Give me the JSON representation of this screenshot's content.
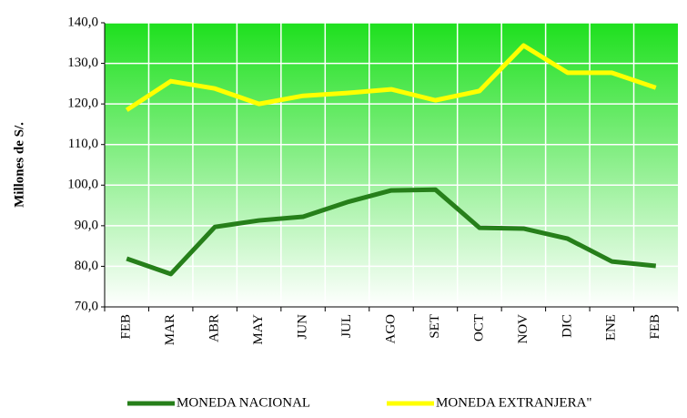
{
  "chart_data": {
    "type": "line",
    "y_label": "Millones de S/.",
    "categories": [
      "FEB",
      "MAR",
      "ABR",
      "MAY",
      "JUN",
      "JUL",
      "AGO",
      "SET",
      "OCT",
      "NOV",
      "DIC",
      "ENE",
      "FEB"
    ],
    "series": [
      {
        "name": "MONEDA NACIONAL",
        "color": "#267f1a",
        "values": [
          81.9,
          78.1,
          89.7,
          91.3,
          92.2,
          95.8,
          98.7,
          98.9,
          89.5,
          89.3,
          86.8,
          81.2,
          80.1
        ]
      },
      {
        "name": "MONEDA EXTRANJERA\"",
        "color": "#ffff00",
        "values": [
          118.5,
          125.6,
          123.8,
          120.0,
          122.0,
          122.7,
          123.6,
          120.9,
          123.2,
          134.4,
          127.7,
          127.7,
          124.0
        ]
      }
    ],
    "ylim": [
      70,
      140
    ],
    "yticks": [
      {
        "value": 70,
        "label": "70,0"
      },
      {
        "value": 80,
        "label": "80,0"
      },
      {
        "value": 90,
        "label": "90,0"
      },
      {
        "value": 100,
        "label": "100,0"
      },
      {
        "value": 110,
        "label": "110,0"
      },
      {
        "value": 120,
        "label": "120,0"
      },
      {
        "value": 130,
        "label": "130,0"
      },
      {
        "value": 140,
        "label": "140,0"
      }
    ],
    "grid": true,
    "legend": "bottom"
  }
}
